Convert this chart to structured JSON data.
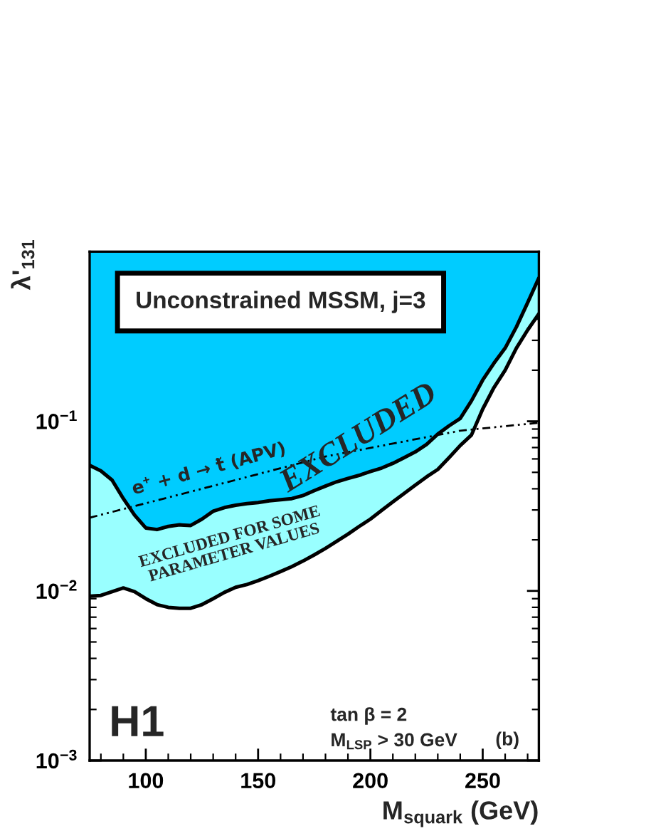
{
  "chart_data": {
    "type": "line",
    "xlabel": "M$_{squark}$ (GeV)",
    "ylabel": "λ'$_{131}$",
    "log": "y",
    "grid": false,
    "xlim": [
      75,
      275
    ],
    "ylim": [
      0.001,
      1
    ],
    "xticks": [
      100,
      150,
      200,
      250
    ],
    "yticks": [
      {
        "value": 0.001,
        "label": "10$^{−3}$"
      },
      {
        "value": 0.01,
        "label": "10$^{−2}$"
      },
      {
        "value": 0.1,
        "label": "10$^{−1}$"
      }
    ],
    "colors": [
      "#00ccff",
      "#99ffff"
    ],
    "x": [
      75,
      80,
      85,
      90,
      95,
      100,
      105,
      110,
      115,
      120,
      125,
      130,
      135,
      140,
      145,
      150,
      155,
      160,
      165,
      170,
      175,
      180,
      185,
      190,
      195,
      200,
      205,
      210,
      215,
      220,
      225,
      230,
      235,
      240,
      245,
      250,
      255,
      260,
      265,
      270,
      275
    ],
    "series": [
      {
        "color": "#000000",
        "line_style": "solid",
        "values": [
          0.055,
          0.051,
          0.045,
          0.035,
          0.028,
          0.0235,
          0.023,
          0.024,
          0.0245,
          0.0243,
          0.0265,
          0.0295,
          0.031,
          0.032,
          0.0327,
          0.0332,
          0.034,
          0.0345,
          0.035,
          0.0365,
          0.039,
          0.0415,
          0.044,
          0.046,
          0.048,
          0.0506,
          0.053,
          0.0565,
          0.061,
          0.066,
          0.073,
          0.084,
          0.094,
          0.104,
          0.132,
          0.175,
          0.22,
          0.27,
          0.36,
          0.5,
          0.7
        ],
        "lower": [
          0.055,
          0.051,
          0.045,
          0.035,
          0.028,
          0.0235,
          0.023,
          0.024,
          0.0245,
          0.0243,
          0.0265,
          0.0295,
          0.031,
          0.032,
          0.0327,
          0.0332,
          0.034,
          0.0345,
          0.035,
          0.0365,
          0.039,
          0.0415,
          0.044,
          0.046,
          0.048,
          0.0506,
          0.053,
          0.0565,
          0.061,
          0.066,
          0.073,
          0.084,
          0.094,
          0.104,
          0.132,
          0.175,
          0.22,
          0.27,
          0.36,
          0.5,
          0.7
        ],
        "upper": [
          1,
          1,
          1,
          1,
          1,
          1,
          1,
          1,
          1,
          1,
          1,
          1,
          1,
          1,
          1,
          1,
          1,
          1,
          1,
          1,
          1,
          1,
          1,
          1,
          1,
          1,
          1,
          1,
          1,
          1,
          1,
          1,
          1,
          1,
          1,
          1,
          1,
          1,
          1,
          1,
          1
        ]
      },
      {
        "color": "#000000",
        "line_style": "solid",
        "values": [
          0.0093,
          0.0094,
          0.0099,
          0.0104,
          0.0099,
          0.009,
          0.0083,
          0.008,
          0.0079,
          0.0079,
          0.0083,
          0.009,
          0.0098,
          0.0105,
          0.0109,
          0.0115,
          0.0122,
          0.013,
          0.0139,
          0.015,
          0.0163,
          0.0178,
          0.0196,
          0.0216,
          0.024,
          0.0265,
          0.0298,
          0.0335,
          0.0375,
          0.042,
          0.047,
          0.052,
          0.061,
          0.072,
          0.083,
          0.118,
          0.158,
          0.2,
          0.27,
          0.345,
          0.43
        ],
        "lower": [
          0.0093,
          0.0094,
          0.0099,
          0.0104,
          0.0099,
          0.009,
          0.0083,
          0.008,
          0.0079,
          0.0079,
          0.0083,
          0.009,
          0.0098,
          0.0105,
          0.0109,
          0.0115,
          0.0122,
          0.013,
          0.0139,
          0.015,
          0.0163,
          0.0178,
          0.0196,
          0.0216,
          0.024,
          0.0265,
          0.0298,
          0.0335,
          0.0375,
          0.042,
          0.047,
          0.052,
          0.061,
          0.072,
          0.083,
          0.118,
          0.158,
          0.2,
          0.27,
          0.345,
          0.43
        ],
        "upper": [
          0.055,
          0.051,
          0.045,
          0.035,
          0.028,
          0.0235,
          0.023,
          0.024,
          0.0245,
          0.0243,
          0.0265,
          0.0295,
          0.031,
          0.032,
          0.0327,
          0.0332,
          0.034,
          0.0345,
          0.035,
          0.0365,
          0.039,
          0.0415,
          0.044,
          0.046,
          0.048,
          0.0506,
          0.053,
          0.0565,
          0.061,
          0.066,
          0.073,
          0.084,
          0.094,
          0.104,
          0.132,
          0.175,
          0.22,
          0.27,
          0.36,
          0.5,
          0.7
        ]
      },
      {
        "name": "e$^{+}$ + d → t̃ (APV)",
        "color": "#000000",
        "line_style": "dotted",
        "x": [
          75,
          125,
          180,
          240,
          275
        ],
        "values": [
          0.027,
          0.04,
          0.062,
          0.088,
          0.098
        ]
      }
    ],
    "annotations": [
      "Unconstrained MSSM, j=3",
      "EXCLUDED",
      "EXCLUDED FOR SOME\nPARAMETER VALUES",
      "H1",
      "tan β = 2",
      "M$_{LSP}$ > 30 GeV",
      "(b)"
    ]
  }
}
